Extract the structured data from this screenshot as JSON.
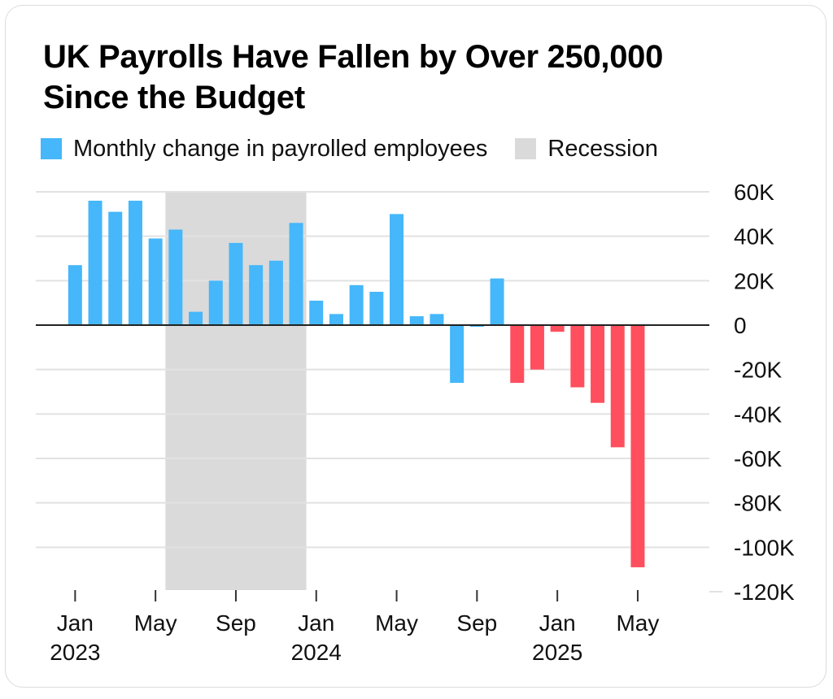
{
  "title_line1": "UK Payrolls Have Fallen by Over 250,000",
  "title_line2": "Since the Budget",
  "legend": {
    "series_label": "Monthly change in payrolled employees",
    "recession_label": "Recession"
  },
  "colors": {
    "positive": "#45b7fa",
    "negative": "#ff4f5e",
    "recession": "#dadada",
    "grid": "#e2e2e2",
    "zero_line": "#222222",
    "tick": "#333333"
  },
  "chart_data": {
    "type": "bar",
    "title": "UK Payrolls Have Fallen by Over 250,000 Since the Budget",
    "series_name": "Monthly change in payrolled employees",
    "months": [
      "2023-01",
      "2023-02",
      "2023-03",
      "2023-04",
      "2023-05",
      "2023-06",
      "2023-07",
      "2023-08",
      "2023-09",
      "2023-10",
      "2023-11",
      "2023-12",
      "2024-01",
      "2024-02",
      "2024-03",
      "2024-04",
      "2024-05",
      "2024-06",
      "2024-07",
      "2024-08",
      "2024-09",
      "2024-10",
      "2024-11",
      "2024-12",
      "2025-01",
      "2025-02",
      "2025-03",
      "2025-04",
      "2025-05"
    ],
    "values": [
      27000,
      56000,
      51000,
      56000,
      39000,
      43000,
      6000,
      20000,
      37000,
      27000,
      29000,
      46000,
      11000,
      5000,
      18000,
      15000,
      50000,
      4000,
      5000,
      -26000,
      -500,
      21000,
      -26000,
      -20000,
      -3000,
      -28000,
      -35000,
      -55000,
      -109000
    ],
    "highlight_from_index": 22,
    "recession": {
      "start_month": "2023-06",
      "end_month": "2023-12"
    },
    "ylim": [
      -120000,
      60000
    ],
    "yticks": [
      {
        "value": 60000,
        "label": "60K"
      },
      {
        "value": 40000,
        "label": "40K"
      },
      {
        "value": 20000,
        "label": "20K"
      },
      {
        "value": 0,
        "label": "0"
      },
      {
        "value": -20000,
        "label": "-20K"
      },
      {
        "value": -40000,
        "label": "-40K"
      },
      {
        "value": -60000,
        "label": "-60K"
      },
      {
        "value": -80000,
        "label": "-80K"
      },
      {
        "value": -100000,
        "label": "-100K"
      },
      {
        "value": -120000,
        "label": "-120K"
      }
    ],
    "xticks": [
      {
        "index": 0,
        "label": "Jan",
        "year": "2023"
      },
      {
        "index": 4,
        "label": "May",
        "year": ""
      },
      {
        "index": 8,
        "label": "Sep",
        "year": ""
      },
      {
        "index": 12,
        "label": "Jan",
        "year": "2024"
      },
      {
        "index": 16,
        "label": "May",
        "year": ""
      },
      {
        "index": 20,
        "label": "Sep",
        "year": ""
      },
      {
        "index": 24,
        "label": "Jan",
        "year": "2025"
      },
      {
        "index": 28,
        "label": "May",
        "year": ""
      }
    ],
    "legend_position": "top-left",
    "yaxis_side": "right"
  }
}
